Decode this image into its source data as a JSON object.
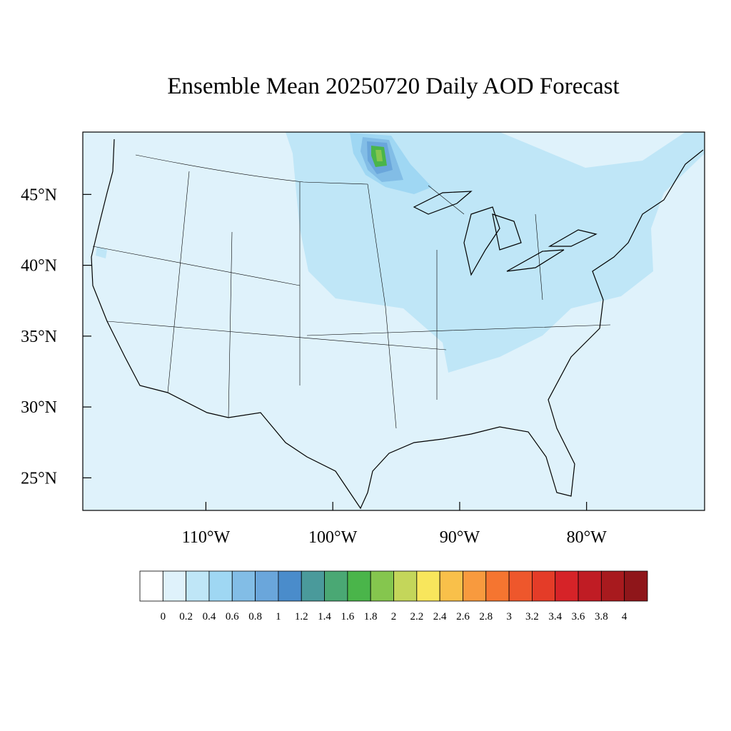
{
  "chart_data": {
    "type": "contour-map",
    "title": "Ensemble Mean 20250720 Daily AOD Forecast",
    "xlim": [
      -119.7,
      -70.7
    ],
    "ylim": [
      22.7,
      49.4
    ],
    "xticks": [
      {
        "value": -110,
        "label": "110°W"
      },
      {
        "value": -100,
        "label": "100°W"
      },
      {
        "value": -90,
        "label": "90°W"
      },
      {
        "value": -80,
        "label": "80°W"
      }
    ],
    "yticks": [
      {
        "value": 25,
        "label": "25°N"
      },
      {
        "value": 30,
        "label": "30°N"
      },
      {
        "value": 35,
        "label": "35°N"
      },
      {
        "value": 40,
        "label": "40°N"
      },
      {
        "value": 45,
        "label": "45°N"
      }
    ],
    "colorbar": {
      "levels": [
        0,
        0.2,
        0.4,
        0.6,
        0.8,
        1,
        1.2,
        1.4,
        1.6,
        1.8,
        2,
        2.2,
        2.4,
        2.6,
        2.8,
        3,
        3.2,
        3.4,
        3.6,
        3.8,
        4
      ],
      "colors": [
        "#ffffff",
        "#dff2fb",
        "#bfe6f7",
        "#9fd7f3",
        "#82bde6",
        "#6aa6db",
        "#4a8ccb",
        "#4a9a9b",
        "#4aa874",
        "#4ab54a",
        "#85c64e",
        "#c4d65a",
        "#f8e65c",
        "#f9c04a",
        "#f89a3e",
        "#f57530",
        "#ee572c",
        "#e43c28",
        "#d62328",
        "#c01c24",
        "#a81a1e",
        "#8f161a"
      ]
    }
  }
}
